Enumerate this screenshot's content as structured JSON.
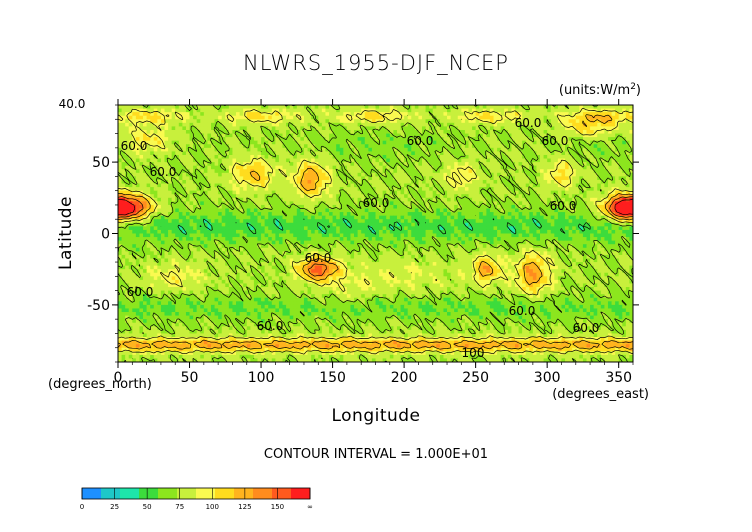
{
  "chart_data": {
    "type": "heatmap",
    "title": "NLWRS_1955-DJF_NCEP",
    "units_label": "(units:W/m^2)",
    "xlabel": "Longitude",
    "ylabel": "Latitude",
    "x_unit_label": "(degrees_east)",
    "y_unit_label": "(degrees_north)",
    "xlim": [
      0,
      360
    ],
    "ylim": [
      -90,
      90
    ],
    "x_ticks": [
      "0",
      "50",
      "100",
      "150",
      "200",
      "250",
      "300",
      "350"
    ],
    "y_ticks": [
      "50",
      "0",
      "-50"
    ],
    "contour_interval_text": "CONTOUR INTERVAL = 1.000E+01",
    "contour_labels": [
      "40.0",
      "60.0",
      "60.0",
      "60.0",
      "60.0",
      "60.0",
      "60.0",
      "60.0",
      "60.0",
      "60.0",
      "60.0",
      "60.0",
      "60.0",
      "100"
    ],
    "colorbar": {
      "levels": [
        "0",
        "25",
        "50",
        "75",
        "100",
        "125",
        "150",
        "∞"
      ],
      "colors": [
        "#1e90ff",
        "#1ec8c8",
        "#1ee6aa",
        "#3cdc3c",
        "#8ce61e",
        "#c8f03c",
        "#fafa50",
        "#ffdc1e",
        "#ffb41e",
        "#ff8c1e",
        "#ff5a1e",
        "#ff1e1e"
      ]
    }
  }
}
